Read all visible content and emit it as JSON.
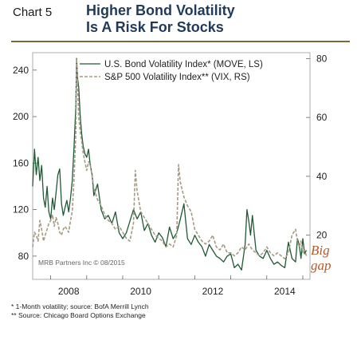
{
  "header": {
    "chart_number": "Chart 5",
    "title_line1": "Higher Bond Volatility",
    "title_line2": "Is A Risk For Stocks"
  },
  "annotation": {
    "line1": "Big",
    "line2": "gap"
  },
  "credit": "MRB Partners Inc © 08/2015",
  "footnotes": [
    "*  1-Month volatility; source: BofA Merrill Lynch",
    "** Source: Chicago Board Options Exchange"
  ],
  "colors": {
    "move": "#1f5a34",
    "vix": "#a79a84",
    "annotation": "#b55a2a",
    "title": "#1f3a5a",
    "rule": "#7a6a3a"
  },
  "chart_data": {
    "type": "line",
    "x_ticks": [
      "2008",
      "2010",
      "2012",
      "2014"
    ],
    "xlim": [
      2007.5,
      2015.2
    ],
    "left_axis": {
      "ticks": [
        80,
        120,
        160,
        200,
        240
      ],
      "ylim": [
        60,
        255
      ]
    },
    "right_axis": {
      "ticks": [
        20,
        40,
        60,
        80
      ],
      "ylim": [
        5,
        82
      ]
    },
    "legend": {
      "placement": "top"
    },
    "series": [
      {
        "name": "U.S. Bond Volatility Index* (MOVE, LS)",
        "axis": "left",
        "style": "solid",
        "x": [
          2007.5,
          2007.55,
          2007.6,
          2007.65,
          2007.7,
          2007.75,
          2007.8,
          2007.85,
          2007.9,
          2007.95,
          2008.0,
          2008.05,
          2008.1,
          2008.15,
          2008.2,
          2008.25,
          2008.3,
          2008.35,
          2008.4,
          2008.45,
          2008.5,
          2008.55,
          2008.6,
          2008.65,
          2008.7,
          2008.72,
          2008.75,
          2008.78,
          2008.82,
          2008.86,
          2008.9,
          2008.95,
          2009.0,
          2009.05,
          2009.1,
          2009.15,
          2009.2,
          2009.3,
          2009.4,
          2009.5,
          2009.6,
          2009.7,
          2009.8,
          2009.9,
          2010.0,
          2010.1,
          2010.2,
          2010.3,
          2010.4,
          2010.5,
          2010.6,
          2010.7,
          2010.8,
          2010.9,
          2011.0,
          2011.1,
          2011.2,
          2011.3,
          2011.4,
          2011.5,
          2011.6,
          2011.7,
          2011.8,
          2011.9,
          2012.0,
          2012.1,
          2012.2,
          2012.3,
          2012.4,
          2012.5,
          2012.6,
          2012.7,
          2012.8,
          2012.9,
          2013.0,
          2013.1,
          2013.2,
          2013.3,
          2013.4,
          2013.45,
          2013.5,
          2013.55,
          2013.6,
          2013.7,
          2013.8,
          2013.9,
          2014.0,
          2014.1,
          2014.2,
          2014.3,
          2014.4,
          2014.5,
          2014.6,
          2014.7,
          2014.8,
          2014.85,
          2014.9,
          2014.95,
          2015.0,
          2015.05,
          2015.1
        ],
        "y": [
          140,
          172,
          150,
          165,
          145,
          158,
          130,
          122,
          140,
          118,
          112,
          130,
          120,
          135,
          150,
          155,
          125,
          115,
          122,
          128,
          118,
          130,
          145,
          175,
          210,
          250,
          232,
          225,
          200,
          185,
          175,
          168,
          165,
          172,
          158,
          150,
          132,
          142,
          120,
          112,
          115,
          108,
          118,
          100,
          95,
          100,
          110,
          120,
          112,
          118,
          102,
          108,
          98,
          92,
          100,
          96,
          88,
          105,
          95,
          100,
          112,
          125,
          95,
          90,
          98,
          92,
          88,
          80,
          90,
          85,
          80,
          78,
          75,
          80,
          82,
          70,
          73,
          68,
          90,
          120,
          110,
          98,
          115,
          85,
          80,
          78,
          85,
          78,
          73,
          75,
          72,
          70,
          92,
          78,
          75,
          95,
          90,
          78,
          95,
          82,
          85
        ]
      },
      {
        "name": "S&P 500 Volatility Index** (VIX, RS)",
        "axis": "right",
        "style": "dashed",
        "x": [
          2007.5,
          2007.55,
          2007.6,
          2007.65,
          2007.7,
          2007.75,
          2007.8,
          2007.85,
          2007.9,
          2007.95,
          2008.0,
          2008.05,
          2008.1,
          2008.15,
          2008.2,
          2008.25,
          2008.3,
          2008.35,
          2008.4,
          2008.45,
          2008.5,
          2008.55,
          2008.6,
          2008.65,
          2008.7,
          2008.72,
          2008.75,
          2008.78,
          2008.82,
          2008.86,
          2008.9,
          2008.95,
          2009.0,
          2009.05,
          2009.1,
          2009.15,
          2009.2,
          2009.3,
          2009.4,
          2009.5,
          2009.6,
          2009.7,
          2009.8,
          2009.9,
          2010.0,
          2010.1,
          2010.2,
          2010.3,
          2010.35,
          2010.4,
          2010.5,
          2010.6,
          2010.7,
          2010.8,
          2010.9,
          2011.0,
          2011.1,
          2011.2,
          2011.3,
          2011.4,
          2011.5,
          2011.55,
          2011.6,
          2011.7,
          2011.8,
          2011.9,
          2012.0,
          2012.1,
          2012.2,
          2012.3,
          2012.4,
          2012.5,
          2012.6,
          2012.7,
          2012.8,
          2012.9,
          2013.0,
          2013.1,
          2013.2,
          2013.3,
          2013.4,
          2013.5,
          2013.6,
          2013.7,
          2013.8,
          2013.9,
          2014.0,
          2014.1,
          2014.2,
          2014.3,
          2014.4,
          2014.5,
          2014.6,
          2014.7,
          2014.8,
          2014.85,
          2014.9,
          2014.95,
          2015.0,
          2015.05,
          2015.1
        ],
        "y": [
          16,
          21,
          20,
          18,
          25,
          22,
          18,
          20,
          22,
          24,
          25,
          27,
          23,
          26,
          24,
          21,
          20,
          22,
          23,
          22,
          21,
          25,
          28,
          40,
          55,
          80,
          70,
          60,
          55,
          52,
          48,
          45,
          42,
          45,
          44,
          40,
          36,
          32,
          30,
          27,
          25,
          24,
          22,
          23,
          21,
          19,
          18,
          24,
          42,
          35,
          28,
          26,
          24,
          22,
          20,
          19,
          18,
          16,
          17,
          16,
          20,
          44,
          38,
          33,
          30,
          28,
          22,
          20,
          18,
          17,
          18,
          20,
          16,
          15,
          17,
          14,
          14,
          13,
          14,
          16,
          15,
          17,
          15,
          14,
          13,
          14,
          16,
          14,
          13,
          14,
          13,
          12,
          14,
          20,
          22,
          18,
          16,
          18,
          14,
          15,
          13
        ]
      }
    ]
  }
}
